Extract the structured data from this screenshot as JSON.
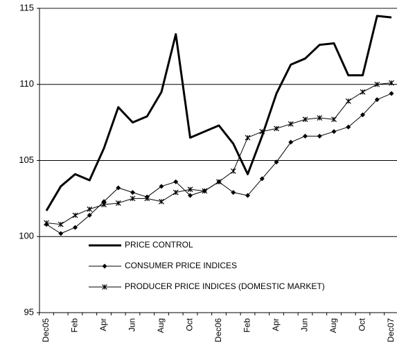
{
  "chart_data": {
    "type": "line",
    "categories": [
      "Dec05",
      null,
      "Feb",
      null,
      "Apr",
      null,
      "Jun",
      null,
      "Aug",
      null,
      "Oct",
      null,
      "Dec06",
      null,
      "Feb",
      null,
      "Apr",
      null,
      "Jun",
      null,
      "Aug",
      null,
      "Oct",
      null,
      "Dec07"
    ],
    "series": [
      {
        "name": "PRICE CONTROL",
        "color": "#000000",
        "line_width": 3,
        "marker": "none",
        "values": [
          101.7,
          103.3,
          104.1,
          103.7,
          105.8,
          108.5,
          107.5,
          107.9,
          109.5,
          113.3,
          106.5,
          106.9,
          107.3,
          106.1,
          104.1,
          106.6,
          109.4,
          111.3,
          111.7,
          112.6,
          112.7,
          110.6,
          110.6,
          114.5,
          114.4
        ]
      },
      {
        "name": "CONSUMER PRICE INDICES",
        "color": "#000000",
        "line_width": 1,
        "marker": "diamond",
        "values": [
          100.8,
          100.2,
          100.6,
          101.4,
          102.3,
          103.2,
          102.9,
          102.6,
          103.3,
          103.6,
          102.7,
          103.0,
          103.6,
          102.9,
          102.7,
          103.8,
          104.9,
          106.2,
          106.6,
          106.6,
          106.9,
          107.2,
          108.0,
          109.0,
          109.4
        ]
      },
      {
        "name": "PRODUCER PRICE INDICES (DOMESTIC MARKET)",
        "color": "#000000",
        "line_width": 1,
        "marker": "star",
        "values": [
          100.9,
          100.8,
          101.4,
          101.8,
          102.1,
          102.2,
          102.5,
          102.5,
          102.3,
          102.9,
          103.1,
          103.0,
          103.6,
          104.3,
          106.5,
          106.9,
          107.1,
          107.4,
          107.7,
          107.8,
          107.7,
          108.9,
          109.5,
          110.0,
          110.1
        ]
      }
    ],
    "ylim": [
      95,
      115
    ],
    "yticks": [
      95,
      100,
      105,
      110,
      115
    ],
    "grid": true,
    "legend": "lower left"
  }
}
